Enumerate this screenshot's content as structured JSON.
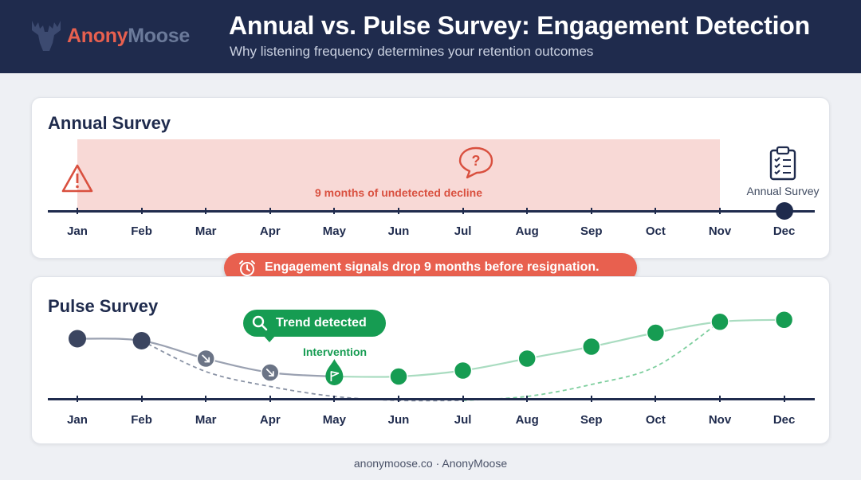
{
  "brand": {
    "part1": "Anony",
    "part2": "Moose",
    "logo_icon": "moose-icon"
  },
  "header": {
    "title": "Annual vs. Pulse Survey: Engagement Detection",
    "subtitle": "Why listening frequency determines your retention outcomes"
  },
  "months": [
    "Jan",
    "Feb",
    "Mar",
    "Apr",
    "May",
    "Jun",
    "Jul",
    "Aug",
    "Sep",
    "Oct",
    "Nov",
    "Dec"
  ],
  "annual": {
    "title": "Annual Survey",
    "decline_text": "9 months of undetected decline",
    "survey_label": "Annual Survey",
    "icons": [
      "warning-icon",
      "question-bubble-icon",
      "clipboard-checklist-icon"
    ]
  },
  "alert": {
    "text": "Engagement signals drop 9 months before resignation.",
    "icon": "alarm-clock-icon"
  },
  "pulse": {
    "title": "Pulse Survey",
    "trend_label": "Trend detected",
    "trend_icon": "search-icon",
    "intervention_label": "Intervention",
    "intervention_icon": "flag-icon"
  },
  "chart_data": {
    "type": "line",
    "categories": [
      "Jan",
      "Feb",
      "Mar",
      "Apr",
      "May",
      "Jun",
      "Jul",
      "Aug",
      "Sep",
      "Oct",
      "Nov",
      "Dec"
    ],
    "series": [
      {
        "values": [
          0.78,
          0.76,
          0.58,
          0.44,
          0.4,
          0.4,
          0.46,
          0.58,
          0.7,
          0.84,
          0.95,
          0.97
        ]
      },
      {
        "values": [
          null,
          0.76,
          0.45,
          0.3,
          0.2,
          0.16,
          0.16,
          0.2,
          0.32,
          0.5,
          0.95,
          null
        ]
      }
    ],
    "colors": {
      "before": "#6b7486",
      "declining": "#6b7486",
      "recovering": "#169c52",
      "projected_decline": "#8a93a5",
      "projected_recovery": "#7fcf9f"
    }
  },
  "footer": {
    "text": "anonymoose.co · AnonyMoose"
  }
}
